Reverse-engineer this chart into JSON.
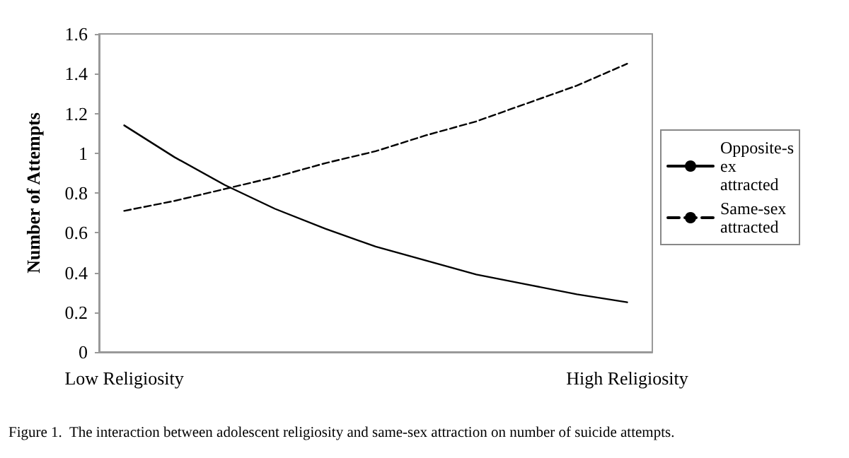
{
  "chart_data": {
    "type": "line",
    "ylabel": "Number of Attempts",
    "categories": [
      "Low Religiosity",
      null,
      null,
      null,
      null,
      null,
      null,
      null,
      null,
      null,
      "High Religiosity"
    ],
    "ylim": [
      0,
      1.6
    ],
    "yticks": [
      0,
      0.2,
      0.4,
      0.6,
      0.8,
      1,
      1.2,
      1.4,
      1.6
    ],
    "series": [
      {
        "name": "Opposite-sex attracted",
        "color": "#000000",
        "line_style": "solid",
        "values": [
          1.14,
          0.98,
          0.84,
          0.72,
          0.62,
          0.53,
          0.46,
          0.39,
          0.34,
          0.29,
          0.25
        ]
      },
      {
        "name": "Same-sex attracted",
        "color": "#000000",
        "line_style": "dashed",
        "values": [
          0.71,
          0.76,
          0.82,
          0.88,
          0.95,
          1.01,
          1.09,
          1.16,
          1.25,
          1.34,
          1.45
        ]
      }
    ],
    "grid": false,
    "legend": "right",
    "marker": "none",
    "annotations": [
      "Figure 1.  The interaction between adolescent religiosity and same-sex attraction on number of suicide attempts."
    ]
  }
}
